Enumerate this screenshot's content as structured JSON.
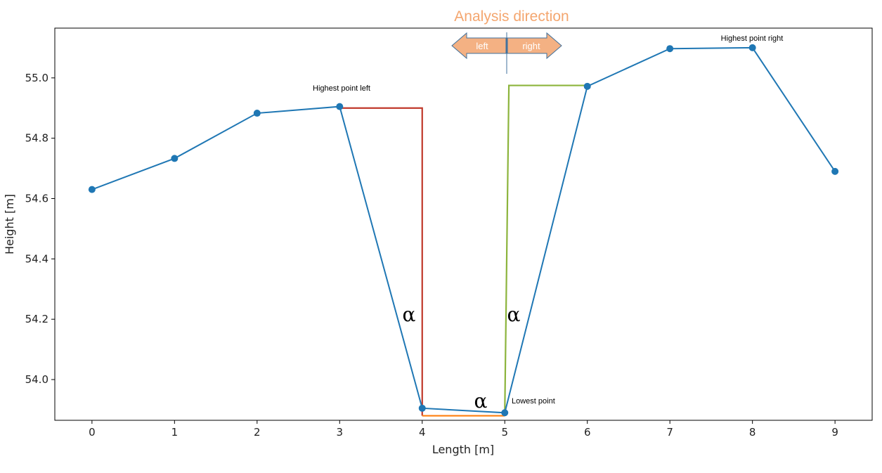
{
  "chart_data": {
    "type": "line",
    "title": "",
    "xlabel": "Length [m]",
    "ylabel": "Height [m]",
    "xlim": [
      -0.45,
      9.45
    ],
    "ylim": [
      53.865,
      55.165
    ],
    "x_ticks": [
      0,
      1,
      2,
      3,
      4,
      5,
      6,
      7,
      8,
      9
    ],
    "y_ticks": [
      54.0,
      54.2,
      54.4,
      54.6,
      54.8,
      55.0
    ],
    "y_tick_labels": [
      "54.0",
      "54.2",
      "54.4",
      "54.6",
      "54.8",
      "55.0"
    ],
    "grid": false,
    "series": [
      {
        "color": "#1f77b4",
        "marker": "circle",
        "x": [
          0,
          1,
          2,
          3,
          4,
          5,
          6,
          7,
          8,
          9
        ],
        "y": [
          54.63,
          54.733,
          54.883,
          54.905,
          53.905,
          53.89,
          54.972,
          55.097,
          55.1,
          54.69
        ]
      }
    ],
    "guides": [
      {
        "name": "left-bracket",
        "color": "#c0392b",
        "points": [
          [
            3,
            54.9
          ],
          [
            4,
            54.9
          ],
          [
            4,
            53.88
          ]
        ]
      },
      {
        "name": "bottom-line",
        "color": "#ff7f0e",
        "points": [
          [
            4,
            53.88
          ],
          [
            5,
            53.88
          ]
        ]
      },
      {
        "name": "right-bracket",
        "color": "#8cb43c",
        "points": [
          [
            5,
            53.89
          ],
          [
            5.05,
            54.975
          ],
          [
            6,
            54.975
          ]
        ]
      }
    ],
    "annotations": [
      {
        "name": "highest-left-label",
        "text": "Highest point left",
        "x": 3,
        "y": 54.905
      },
      {
        "name": "highest-right-label",
        "text": "Highest point right",
        "x": 8,
        "y": 55.1
      },
      {
        "name": "lowest-label",
        "text": "Lowest point",
        "x": 5,
        "y": 53.89
      }
    ],
    "alpha_symbols": [
      {
        "name": "alpha-left",
        "text": "α",
        "x": 3.82,
        "y": 54.18
      },
      {
        "name": "alpha-right",
        "text": "α",
        "x": 5.12,
        "y": 54.18
      },
      {
        "name": "alpha-bottom",
        "text": "α",
        "x": 4.71,
        "y": 53.865
      }
    ],
    "direction": {
      "title": "Analysis direction",
      "left_label": "left",
      "right_label": "right",
      "title_color": "#f4a66f",
      "arrow_fill": "#f4b183",
      "arrow_stroke": "#41719c"
    }
  }
}
